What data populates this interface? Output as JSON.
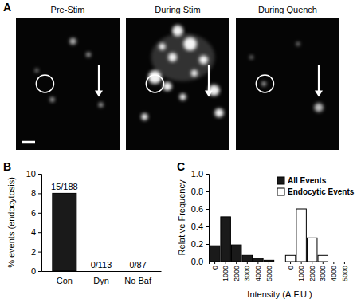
{
  "panel_labels": [
    "A",
    "B",
    "C"
  ],
  "images": {
    "titles": [
      "Pre-Stim",
      "During Stim",
      "During Quench"
    ]
  },
  "chart_data": [
    {
      "type": "bar",
      "categories": [
        "Con",
        "Dyn",
        "No Baf"
      ],
      "values": [
        8,
        0,
        0
      ],
      "annotations": [
        "15/188",
        "0/113",
        "0/87"
      ],
      "color": "#1a1a1a",
      "ylim": [
        0,
        10
      ],
      "yticks": [
        0,
        2,
        4,
        6,
        8,
        10
      ],
      "y_label": "% events (endocytosis)"
    },
    {
      "type": "bar",
      "categories": [
        "0",
        "1000",
        "2000",
        "3000",
        "4000",
        "5000",
        null,
        "0",
        "1000",
        "2000",
        "3000",
        "4000",
        "5000"
      ],
      "series": [
        {
          "name": "All Events",
          "color": "#1a1a1a",
          "values": [
            0.18,
            0.51,
            0.19,
            0.07,
            0.04,
            0.015,
            null,
            null,
            null,
            null,
            null,
            null,
            null
          ]
        },
        {
          "name": "Endocytic Events",
          "color": "#ffffff",
          "values": [
            null,
            null,
            null,
            null,
            null,
            null,
            null,
            0.07,
            0.6,
            0.27,
            0.07,
            0,
            0
          ]
        }
      ],
      "ylim": [
        0,
        1
      ],
      "yticks": [
        {
          "value": 0,
          "label": "0.0"
        },
        {
          "value": 0.2,
          "label": "0.2"
        },
        {
          "value": 0.4,
          "label": "0.4"
        },
        {
          "value": 0.6,
          "label": "0.6"
        },
        {
          "value": 0.8,
          "label": "0.8"
        },
        {
          "value": 1,
          "label": "1.0"
        }
      ],
      "x_label": "Intensity (A.F.U.)",
      "y_label": "Relative Frequency",
      "legend": "top-right"
    }
  ]
}
